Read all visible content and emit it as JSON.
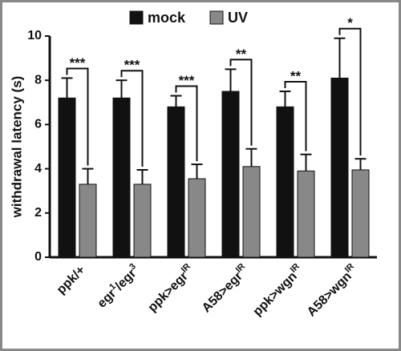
{
  "chart_data": {
    "type": "bar",
    "y_label": "withdrawal latency (s)",
    "categories": [
      [
        {
          "t": "ppk/+"
        }
      ],
      [
        {
          "t": "egr"
        },
        {
          "sup": "1"
        },
        {
          "t": "/egr"
        },
        {
          "sup": "3"
        }
      ],
      [
        {
          "t": "ppk>egr"
        },
        {
          "sup": "IR"
        }
      ],
      [
        {
          "t": "A58>egr"
        },
        {
          "sup": "IR"
        }
      ],
      [
        {
          "t": "ppk>wgn"
        },
        {
          "sup": "IR"
        }
      ],
      [
        {
          "t": "A58>wgn"
        },
        {
          "sup": "IR"
        }
      ]
    ],
    "series": [
      {
        "name": "mock",
        "color": "#111111",
        "values": [
          7.2,
          7.2,
          6.8,
          7.5,
          6.8,
          8.1
        ],
        "errors": [
          0.9,
          0.8,
          0.5,
          1.0,
          0.7,
          1.8
        ]
      },
      {
        "name": "UV",
        "color": "#888888",
        "values": [
          3.3,
          3.3,
          3.55,
          4.1,
          3.9,
          3.95
        ],
        "errors": [
          0.7,
          0.65,
          0.65,
          0.8,
          0.75,
          0.5
        ]
      }
    ],
    "significance": [
      "***",
      "***",
      "***",
      "**",
      "**",
      "*"
    ],
    "ylim": [
      0,
      10
    ],
    "yticks": [
      0,
      2,
      4,
      6,
      8,
      10
    ],
    "legend": "top"
  }
}
